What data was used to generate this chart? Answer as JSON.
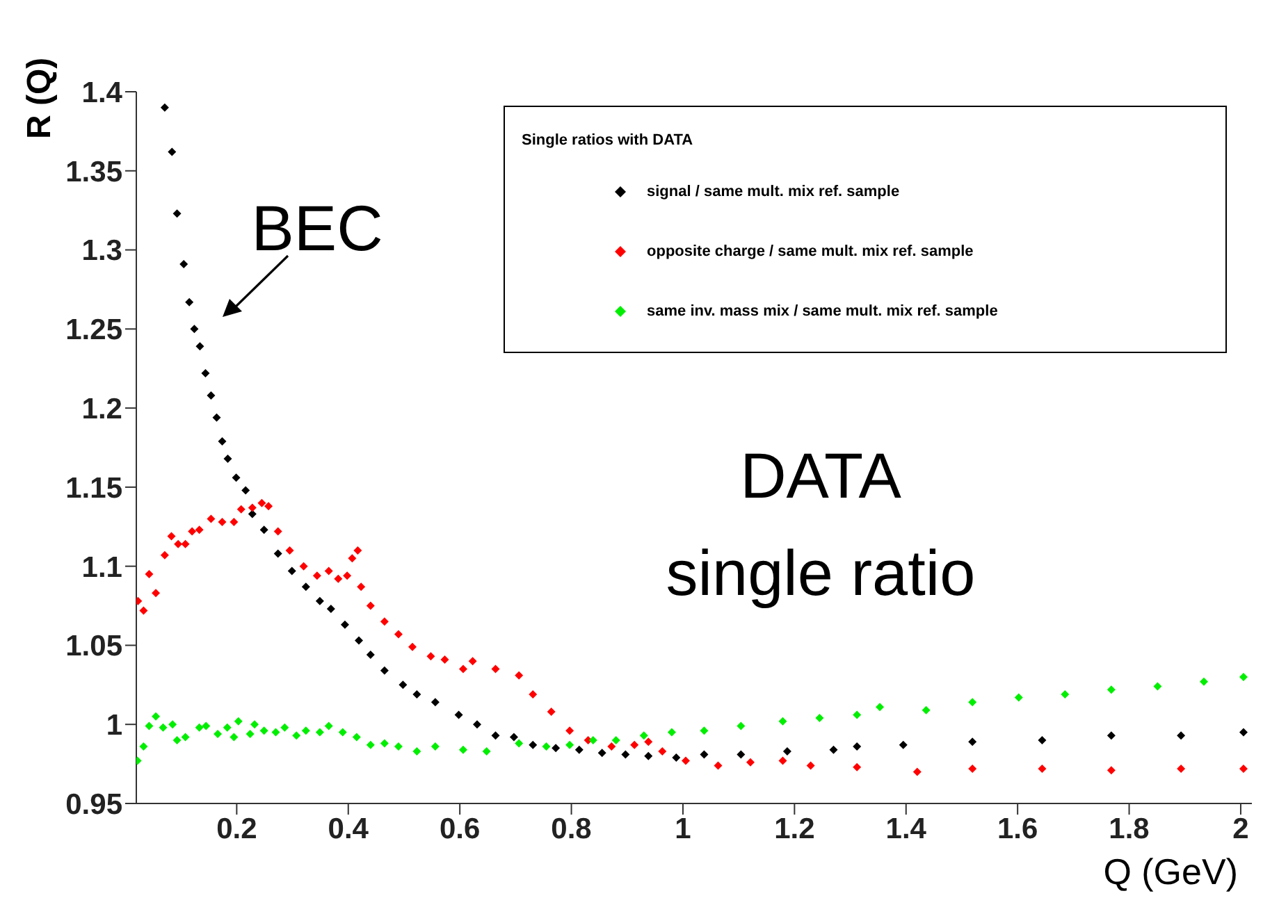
{
  "chart_data": {
    "type": "scatter",
    "xlabel": "Q (GeV)",
    "ylabel": "R (Q)",
    "legend_title": "Single ratios with DATA",
    "legend": "top right",
    "marker": "diamond",
    "grid": false,
    "xlim": [
      0.02,
      2.02
    ],
    "xticks": [
      0.2,
      0.4,
      0.6,
      0.8,
      1,
      1.2,
      1.4,
      1.6,
      1.8,
      2
    ],
    "ylim": [
      0.95,
      1.4
    ],
    "yticks": [
      0.95,
      1,
      1.05,
      1.1,
      1.15,
      1.2,
      1.25,
      1.3,
      1.35,
      1.4
    ],
    "annotations": [
      "BEC",
      "DATA",
      "single ratio"
    ],
    "series": [
      {
        "name": "signal / same mult. mix ref. sample",
        "color": "#000000",
        "x": [
          0.071,
          0.084,
          0.093,
          0.105,
          0.115,
          0.124,
          0.134,
          0.144,
          0.154,
          0.164,
          0.174,
          0.184,
          0.199,
          0.216,
          0.228,
          0.249,
          0.274,
          0.299,
          0.324,
          0.349,
          0.369,
          0.394,
          0.419,
          0.44,
          0.465,
          0.498,
          0.523,
          0.556,
          0.598,
          0.631,
          0.664,
          0.697,
          0.731,
          0.772,
          0.814,
          0.855,
          0.897,
          0.938,
          0.988,
          1.038,
          1.104,
          1.187,
          1.27,
          1.312,
          1.395,
          1.519,
          1.644,
          1.768,
          1.893,
          2.005
        ],
        "values": [
          1.39,
          1.362,
          1.323,
          1.291,
          1.267,
          1.25,
          1.239,
          1.222,
          1.208,
          1.194,
          1.179,
          1.168,
          1.156,
          1.148,
          1.133,
          1.123,
          1.108,
          1.097,
          1.087,
          1.078,
          1.073,
          1.063,
          1.053,
          1.044,
          1.034,
          1.025,
          1.019,
          1.014,
          1.006,
          1.0,
          0.993,
          0.992,
          0.987,
          0.985,
          0.984,
          0.982,
          0.981,
          0.98,
          0.979,
          0.981,
          0.981,
          0.983,
          0.984,
          0.986,
          0.987,
          0.989,
          0.99,
          0.993,
          0.993,
          0.995
        ]
      },
      {
        "name": "opposite charge / same mult. mix ref. sample",
        "color": "#ff0000",
        "x": [
          0.023,
          0.033,
          0.043,
          0.055,
          0.071,
          0.083,
          0.095,
          0.108,
          0.12,
          0.133,
          0.154,
          0.174,
          0.195,
          0.208,
          0.228,
          0.245,
          0.257,
          0.274,
          0.295,
          0.32,
          0.344,
          0.365,
          0.382,
          0.398,
          0.407,
          0.417,
          0.423,
          0.44,
          0.465,
          0.49,
          0.515,
          0.548,
          0.573,
          0.606,
          0.623,
          0.664,
          0.706,
          0.731,
          0.764,
          0.797,
          0.83,
          0.872,
          0.913,
          0.938,
          0.963,
          1.005,
          1.063,
          1.121,
          1.179,
          1.229,
          1.312,
          1.42,
          1.519,
          1.644,
          1.768,
          1.893,
          2.005
        ],
        "values": [
          1.078,
          1.072,
          1.095,
          1.083,
          1.107,
          1.119,
          1.114,
          1.114,
          1.122,
          1.123,
          1.13,
          1.128,
          1.128,
          1.136,
          1.137,
          1.14,
          1.138,
          1.122,
          1.11,
          1.1,
          1.094,
          1.097,
          1.092,
          1.094,
          1.105,
          1.11,
          1.087,
          1.075,
          1.065,
          1.057,
          1.049,
          1.043,
          1.041,
          1.035,
          1.04,
          1.035,
          1.031,
          1.019,
          1.008,
          0.996,
          0.99,
          0.986,
          0.987,
          0.989,
          0.983,
          0.977,
          0.974,
          0.976,
          0.977,
          0.974,
          0.973,
          0.97,
          0.972,
          0.972,
          0.971,
          0.972,
          0.972
        ]
      },
      {
        "name": "same inv. mass mix / same mult. mix ref. sample",
        "color": "#00ee00",
        "x": [
          0.022,
          0.033,
          0.043,
          0.055,
          0.068,
          0.085,
          0.093,
          0.108,
          0.133,
          0.145,
          0.166,
          0.183,
          0.195,
          0.203,
          0.224,
          0.232,
          0.249,
          0.27,
          0.286,
          0.307,
          0.324,
          0.349,
          0.365,
          0.39,
          0.415,
          0.44,
          0.465,
          0.49,
          0.523,
          0.556,
          0.606,
          0.648,
          0.706,
          0.755,
          0.797,
          0.839,
          0.88,
          0.93,
          0.98,
          1.038,
          1.104,
          1.179,
          1.245,
          1.312,
          1.353,
          1.436,
          1.519,
          1.602,
          1.685,
          1.768,
          1.851,
          1.934,
          2.005
        ],
        "values": [
          0.977,
          0.986,
          0.999,
          1.005,
          0.998,
          1.0,
          0.99,
          0.992,
          0.998,
          0.999,
          0.994,
          0.998,
          0.992,
          1.002,
          0.994,
          1.0,
          0.996,
          0.995,
          0.998,
          0.993,
          0.996,
          0.995,
          0.999,
          0.995,
          0.992,
          0.987,
          0.988,
          0.986,
          0.983,
          0.986,
          0.984,
          0.983,
          0.988,
          0.986,
          0.987,
          0.99,
          0.99,
          0.993,
          0.995,
          0.996,
          0.999,
          1.002,
          1.004,
          1.006,
          1.011,
          1.009,
          1.014,
          1.017,
          1.019,
          1.022,
          1.024,
          1.027,
          1.03
        ]
      }
    ]
  }
}
